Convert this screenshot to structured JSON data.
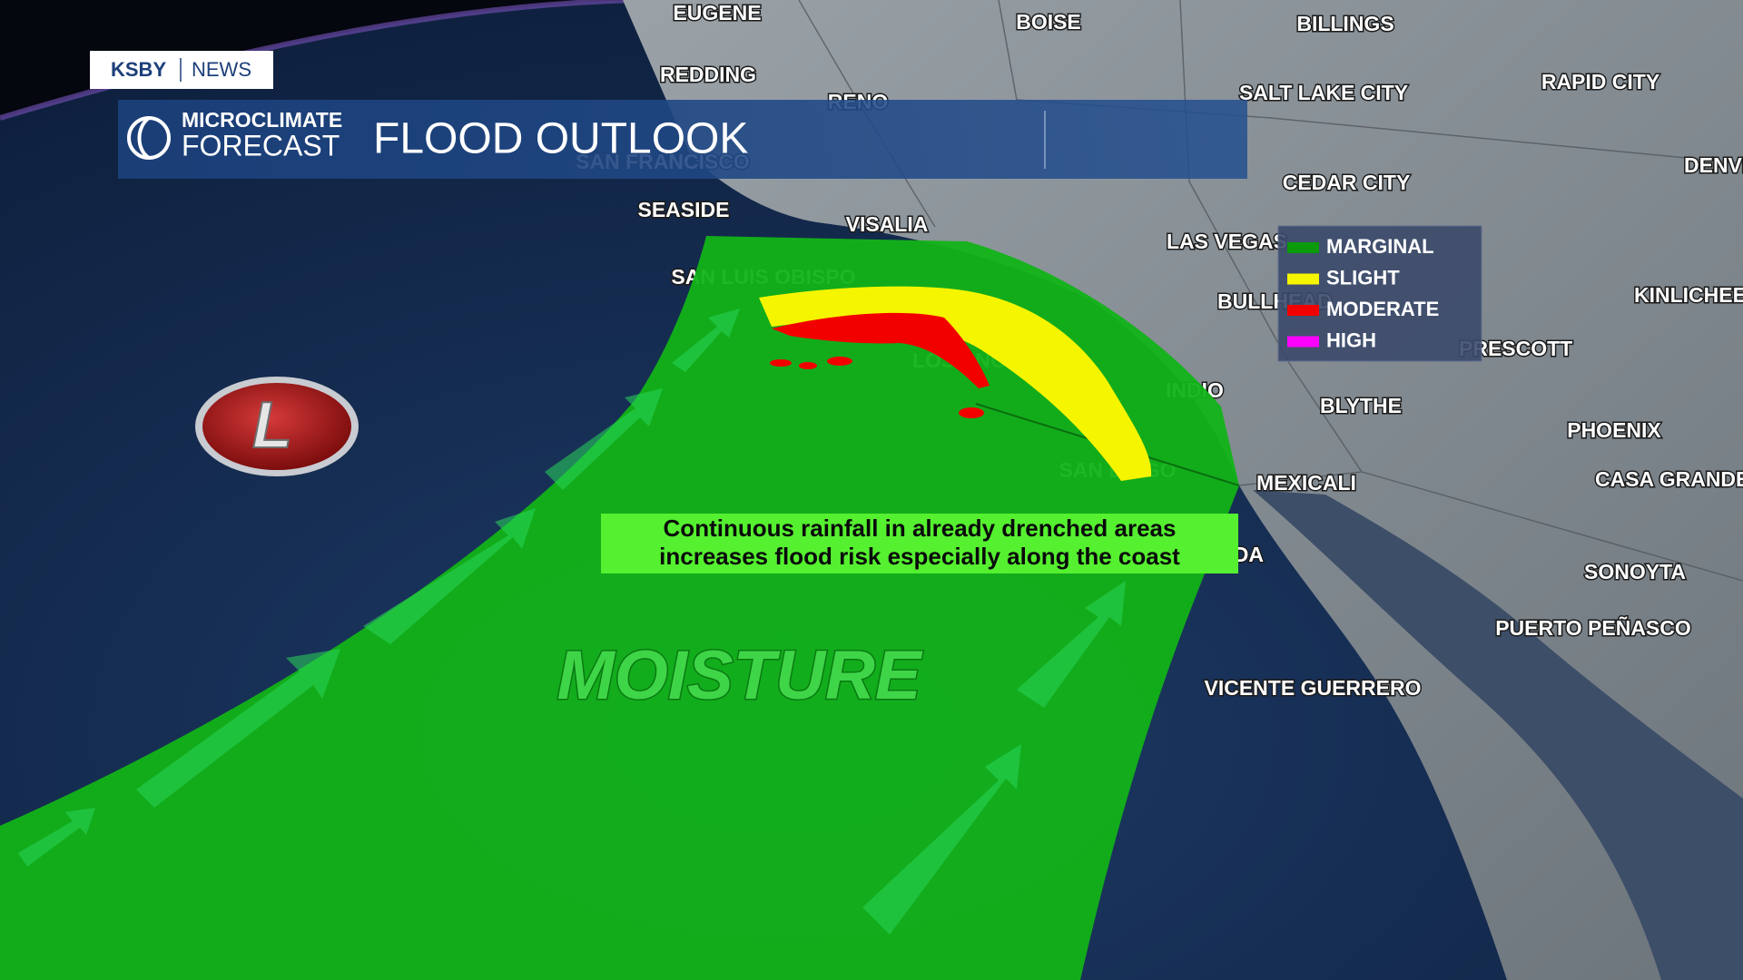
{
  "header": {
    "brand": "KSBY",
    "brand_section": "NEWS",
    "logo_line1": "MICROCLIMATE",
    "logo_line2": "FORECAST",
    "title": "FLOOD OUTLOOK"
  },
  "map": {
    "cities": [
      "EUGENE",
      "BOISE",
      "BILLINGS",
      "REDDING",
      "RENO",
      "SALT LAKE CITY",
      "RAPID CITY",
      "SAN FRANCISCO",
      "DENVER",
      "CEDAR CITY",
      "SEASIDE",
      "VISALIA",
      "LAS VEGAS",
      "SAN LUIS OBISPO",
      "BULLHEAD",
      "KINLICHEE",
      "LOS ANGELES",
      "PRESCOTT",
      "INDIO",
      "BLYTHE",
      "PHOENIX",
      "SAN DIEGO",
      "MEXICALI",
      "CASA GRANDE",
      "ENSENADA",
      "SONOYTA",
      "PUERTO PEÑASCO",
      "VICENTE GUERRERO"
    ],
    "low_pressure": "L",
    "moisture_label": "MOISTURE",
    "callout": [
      "Continuous rainfall in already drenched areas",
      "increases flood risk especially along the coast"
    ]
  },
  "legend": {
    "items": [
      {
        "label": "MARGINAL",
        "color": "#0a9a0a"
      },
      {
        "label": "SLIGHT",
        "color": "#f5f500"
      },
      {
        "label": "MODERATE",
        "color": "#f20000"
      },
      {
        "label": "HIGH",
        "color": "#ff00ff"
      }
    ]
  }
}
